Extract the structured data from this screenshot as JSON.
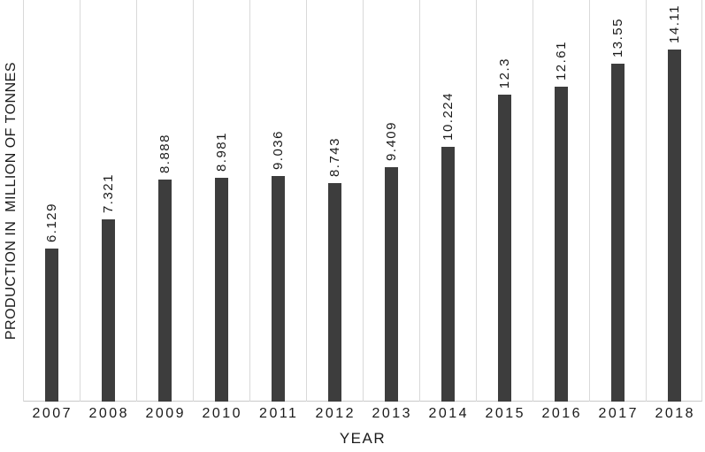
{
  "chart_data": {
    "type": "bar",
    "title": "",
    "xlabel": "YEAR",
    "ylabel": "PRODUCTION IN  MILLION OF TONNES",
    "categories": [
      "2007",
      "2008",
      "2009",
      "2010",
      "2011",
      "2012",
      "2013",
      "2014",
      "2015",
      "2016",
      "2017",
      "2018"
    ],
    "values": [
      6.129,
      7.321,
      8.888,
      8.981,
      9.036,
      8.743,
      9.409,
      10.224,
      12.3,
      12.61,
      13.55,
      14.11
    ],
    "value_labels": [
      "6.129",
      "7.321",
      "8.888",
      "8.981",
      "9.036",
      "8.743",
      "9.409",
      "10.224",
      "12.3",
      "12.61",
      "13.55",
      "14.11"
    ],
    "ylim": [
      0,
      16.1
    ],
    "y_axis_ticks": "none",
    "legend": "none",
    "grid": "vertical category separators only",
    "data_label_orientation": "rotated 90deg, above bar tops",
    "bar_color": "#3d3d3d",
    "gridline_color": "#d9d9d9",
    "axis_line_color": "#c9c9c9",
    "text_color": "#1a1a1a",
    "background_color": "#ffffff"
  }
}
